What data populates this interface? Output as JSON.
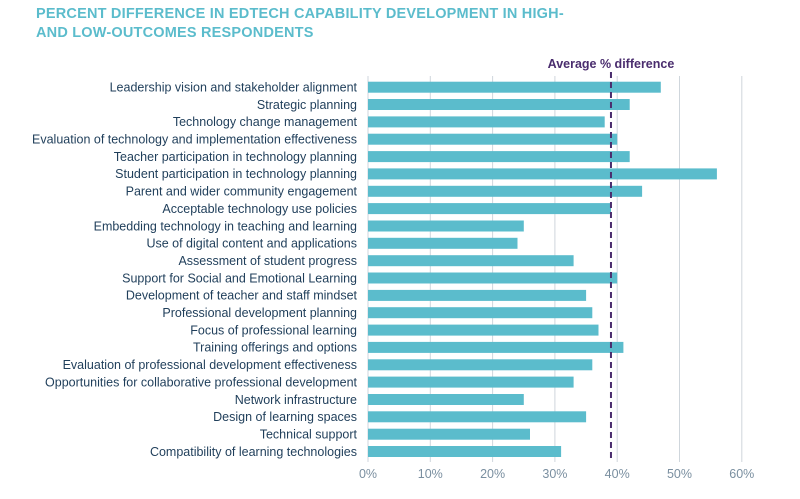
{
  "title_lines": [
    "PERCENT DIFFERENCE IN EDTECH CAPABILITY DEVELOPMENT IN HIGH-",
    "AND LOW-OUTCOMES RESPONDENTS"
  ],
  "colors": {
    "bar": "#5bbccc",
    "title": "#5bbccc",
    "average_line": "#4a2d6e",
    "grid": "#cfd6dc",
    "label": "#1f3e5a",
    "tick": "#7a8fa0"
  },
  "chart_data": {
    "type": "bar",
    "orientation": "horizontal",
    "title": "PERCENT DIFFERENCE IN EDTECH CAPABILITY DEVELOPMENT IN HIGH- AND LOW-OUTCOMES RESPONDENTS",
    "categories": [
      "Leadership vision and stakeholder alignment",
      "Strategic planning",
      "Technology change management",
      "Evaluation of technology and implementation effectiveness",
      "Teacher participation in technology planning",
      "Student participation in technology planning",
      "Parent and wider community engagement",
      "Acceptable technology use policies",
      "Embedding technology in teaching and learning",
      "Use of digital content and applications",
      "Assessment of student progress",
      "Support for Social and Emotional Learning",
      "Development of teacher and staff mindset",
      "Professional development planning",
      "Focus of professional learning",
      "Training offerings and options",
      "Evaluation of professional development effectiveness",
      "Opportunities for collaborative professional development",
      "Network infrastructure",
      "Design of learning spaces",
      "Technical support",
      "Compatibility of learning technologies"
    ],
    "values": [
      47,
      42,
      38,
      40,
      42,
      56,
      44,
      39,
      25,
      24,
      33,
      40,
      35,
      36,
      37,
      41,
      36,
      33,
      25,
      35,
      26,
      31
    ],
    "xlim": [
      0,
      60
    ],
    "xticks": [
      "0%",
      "10%",
      "20%",
      "30%",
      "40%",
      "50%",
      "60%"
    ],
    "xtick_values": [
      0,
      10,
      20,
      30,
      40,
      50,
      60
    ],
    "grid": "vertical",
    "reference_line": {
      "label": "Average % difference",
      "value": 39,
      "style": "dashed"
    }
  }
}
